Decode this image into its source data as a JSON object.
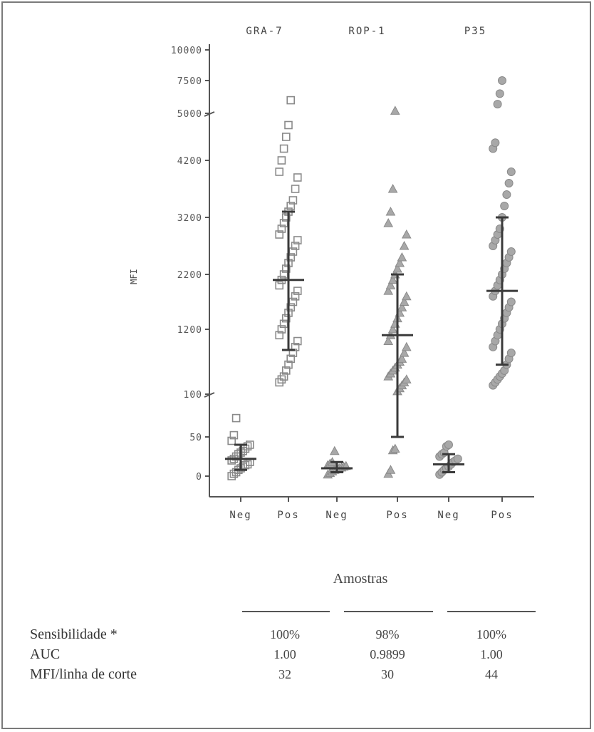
{
  "chart_data": {
    "type": "scatter",
    "ylabel": "MFI",
    "xlabel": "Amostras",
    "y_ticks": [
      "0",
      "50",
      "100",
      "1200",
      "2200",
      "3200",
      "4200",
      "5000",
      "7500",
      "10000"
    ],
    "y_scale": "segmented (axis breaks at 100 and 5000)",
    "groups": [
      {
        "name": "GRA-7",
        "marker": "square",
        "series": [
          {
            "category": "Neg",
            "mean": 22,
            "sd_low": 8,
            "sd_high": 40,
            "points": [
              0,
              3,
              5,
              8,
              10,
              12,
              14,
              15,
              18,
              20,
              22,
              25,
              28,
              30,
              32,
              35,
              38,
              40,
              45,
              52,
              72
            ]
          },
          {
            "category": "Pos",
            "mean": 2100,
            "sd_low": 850,
            "sd_high": 3300,
            "points": [
              300,
              350,
              400,
              500,
              600,
              700,
              800,
              900,
              1000,
              1100,
              1200,
              1300,
              1400,
              1500,
              1600,
              1700,
              1800,
              1900,
              2000,
              2100,
              2200,
              2300,
              2400,
              2500,
              2600,
              2700,
              2800,
              2900,
              3000,
              3100,
              3200,
              3300,
              3400,
              3500,
              3700,
              3900,
              4000,
              4200,
              4400,
              4600,
              4800,
              6000
            ]
          }
        ]
      },
      {
        "name": "ROP-1",
        "marker": "triangle",
        "series": [
          {
            "category": "Neg",
            "mean": 10,
            "sd_low": 5,
            "sd_high": 18,
            "points": [
              2,
              4,
              6,
              8,
              9,
              10,
              11,
              12,
              13,
              14,
              16,
              18,
              32
            ]
          },
          {
            "category": "Pos",
            "mean": 1100,
            "sd_low": 50,
            "sd_high": 2200,
            "points": [
              3,
              8,
              33,
              35,
              150,
              200,
              250,
              300,
              350,
              400,
              450,
              500,
              550,
              600,
              650,
              700,
              800,
              900,
              1000,
              1100,
              1200,
              1300,
              1400,
              1500,
              1600,
              1700,
              1800,
              1900,
              2000,
              2100,
              2200,
              2300,
              2400,
              2500,
              2700,
              2900,
              3100,
              3300,
              3700,
              5200
            ]
          }
        ]
      },
      {
        "name": "P35",
        "marker": "circle",
        "series": [
          {
            "category": "Neg",
            "mean": 15,
            "sd_low": 5,
            "sd_high": 28,
            "points": [
              2,
              5,
              8,
              10,
              12,
              15,
              18,
              20,
              22,
              25,
              28,
              30,
              38,
              40
            ]
          },
          {
            "category": "Pos",
            "mean": 1900,
            "sd_low": 600,
            "sd_high": 3200,
            "points": [
              250,
              300,
              350,
              400,
              450,
              500,
              600,
              700,
              800,
              900,
              1000,
              1100,
              1200,
              1300,
              1400,
              1500,
              1600,
              1700,
              1800,
              1900,
              2000,
              2100,
              2200,
              2300,
              2400,
              2500,
              2600,
              2700,
              2800,
              2900,
              3000,
              3200,
              3400,
              3600,
              3800,
              4000,
              4400,
              4500,
              5700,
              6500,
              7500
            ]
          }
        ]
      }
    ]
  },
  "table": {
    "rows": [
      {
        "label": "Sensibilidade *",
        "values": [
          "100%",
          "98%",
          "100%"
        ]
      },
      {
        "label": "AUC",
        "values": [
          "1.00",
          "0.9899",
          "1.00"
        ]
      },
      {
        "label": "MFI/linha de corte",
        "values": [
          "32",
          "30",
          "44"
        ]
      }
    ]
  },
  "colors": {
    "marker": "#a8a8a8",
    "marker_stroke": "#8a8a8a",
    "mean_bar": "#3a3a3a",
    "axis": "#555555"
  }
}
